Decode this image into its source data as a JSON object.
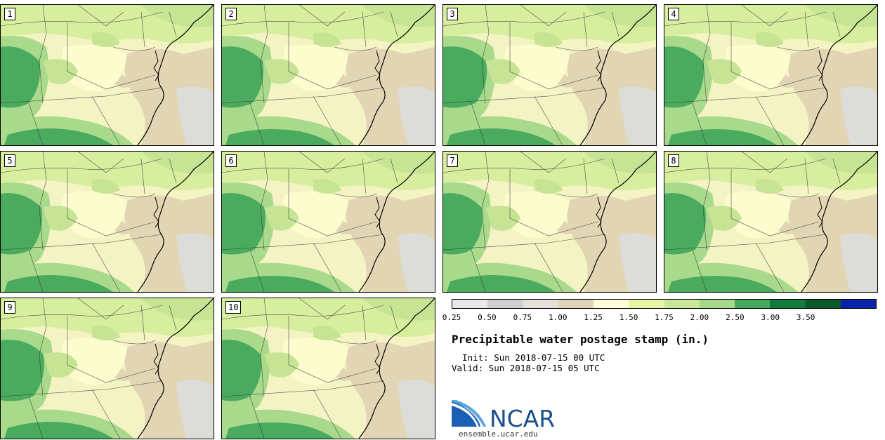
{
  "panels": [
    {
      "label": "1"
    },
    {
      "label": "2"
    },
    {
      "label": "3"
    },
    {
      "label": "4"
    },
    {
      "label": "5"
    },
    {
      "label": "6"
    },
    {
      "label": "7"
    },
    {
      "label": "8"
    },
    {
      "label": "9"
    },
    {
      "label": "10"
    }
  ],
  "legend": {
    "colors": [
      "#e8e8e8",
      "#cfcfcf",
      "#e4e2d8",
      "#e0d4b8",
      "#ffffd8",
      "#e8f5a8",
      "#c8e898",
      "#a6d98a",
      "#44a95d",
      "#137b3b",
      "#0a5a2b",
      "#0a22a8"
    ],
    "ticks": [
      "0.25",
      "0.50",
      "0.75",
      "1.00",
      "1.25",
      "1.50",
      "1.75",
      "2.00",
      "2.50",
      "3.00",
      "3.50"
    ]
  },
  "title": "Precipitable water postage stamp (in.)",
  "init_line": "  Init: Sun 2018-07-15 00 UTC",
  "valid_line": "Valid: Sun 2018-07-15 05 UTC",
  "logo": {
    "text": "NCAR",
    "url": "ensemble.ucar.edu"
  }
}
